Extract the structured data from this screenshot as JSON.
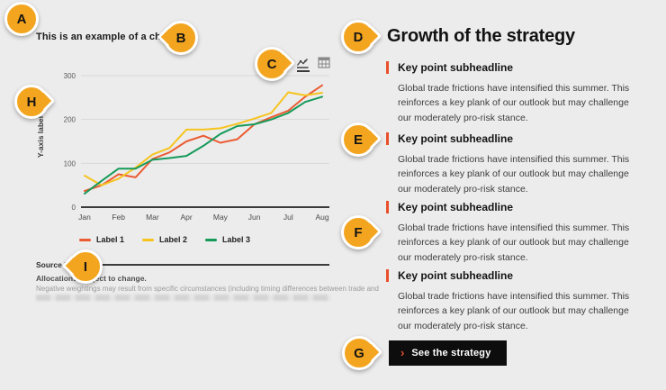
{
  "colors": {
    "background": "#ececec",
    "marker_orange": "#f3a51f",
    "accent_bar": "#e8502b",
    "cta_background": "#0d0d0d",
    "series_1": "#eb5b32",
    "series_2": "#f6c41f",
    "series_3": "#169a5a"
  },
  "markers": [
    {
      "label": "A"
    },
    {
      "label": "B"
    },
    {
      "label": "C"
    },
    {
      "label": "D"
    },
    {
      "label": "E"
    },
    {
      "label": "F"
    },
    {
      "label": "G"
    },
    {
      "label": "H"
    },
    {
      "label": "I"
    }
  ],
  "chart": {
    "title": "This is an example of a chart title",
    "y_axis_label": "Y-axis label",
    "source_label": "Source R",
    "footnote_1": "Allocations subject to change.",
    "footnote_2": "Negative weightings may result from specific circumstances (including timing differences between trade and"
  },
  "chart_data": {
    "type": "line",
    "title": "This is an example of a chart title",
    "ylabel": "Y-axis label",
    "xlabel": "",
    "x_labels": [
      "Jan",
      "Feb",
      "Mar",
      "Apr",
      "May",
      "Jun",
      "Jul",
      "Aug"
    ],
    "ylim": [
      0,
      300
    ],
    "yticks": [
      0,
      100,
      200,
      300
    ],
    "grid": true,
    "legend_position": "bottom",
    "points_per_month": 2,
    "series": [
      {
        "name": "Label 1",
        "color": "#eb5b32",
        "values": [
          37,
          50,
          75,
          68,
          110,
          125,
          150,
          163,
          147,
          155,
          189,
          205,
          220,
          252,
          278
        ]
      },
      {
        "name": "Label 2",
        "color": "#f6c41f",
        "values": [
          72,
          50,
          65,
          90,
          120,
          135,
          177,
          177,
          180,
          190,
          202,
          215,
          262,
          255,
          261
        ]
      },
      {
        "name": "Label 3",
        "color": "#169a5a",
        "values": [
          31,
          60,
          88,
          88,
          108,
          112,
          117,
          140,
          167,
          185,
          189,
          200,
          215,
          240,
          252
        ]
      }
    ]
  },
  "right": {
    "heading": "Growth of the strategy",
    "key_points": [
      {
        "headline": "Key point subheadline",
        "body": "Global trade frictions have intensified this summer. This reinforces a key plank of our outlook but may challenge our moderately pro-risk stance."
      },
      {
        "headline": "Key point subheadline",
        "body": "Global trade frictions have intensified this summer. This reinforces a key plank of our outlook but may challenge our moderately pro-risk stance."
      },
      {
        "headline": "Key point subheadline",
        "body": "Global trade frictions have intensified this summer. This reinforces a key plank of our outlook but may challenge our moderately pro-risk stance."
      },
      {
        "headline": "Key point subheadline",
        "body": "Global trade frictions have intensified this summer. This reinforces a key plank of our outlook but may challenge our moderately pro-risk stance."
      }
    ],
    "cta_label": "See the strategy",
    "cta_chevron": "›"
  }
}
